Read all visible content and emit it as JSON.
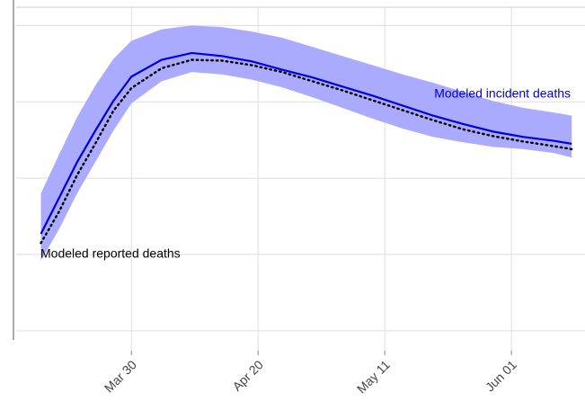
{
  "chart_data": {
    "type": "line",
    "x": [
      15,
      18,
      21,
      24,
      27,
      30,
      35,
      40,
      45,
      50,
      55,
      60,
      65,
      70,
      75,
      80,
      85,
      90,
      95,
      100,
      103
    ],
    "xlim": [
      10.9,
      105.2
    ],
    "xticks": [
      {
        "value": 30,
        "label": "Mar 30"
      },
      {
        "value": 51,
        "label": "Apr 20"
      },
      {
        "value": 72,
        "label": "May 11"
      },
      {
        "value": 93,
        "label": "Jun 01"
      }
    ],
    "ylim": [
      -0.26,
      4.24
    ],
    "yticks": [
      0,
      1,
      2,
      3,
      4
    ],
    "grid": true,
    "band": {
      "color": "#aaaaff",
      "upper": [
        1.8,
        2.31,
        2.8,
        3.21,
        3.56,
        3.8,
        3.95,
        4.0,
        3.98,
        3.92,
        3.84,
        3.72,
        3.6,
        3.48,
        3.36,
        3.25,
        3.13,
        3.01,
        2.92,
        2.86,
        2.82
      ],
      "lower": [
        0.92,
        1.33,
        1.8,
        2.21,
        2.62,
        2.98,
        3.27,
        3.39,
        3.36,
        3.29,
        3.19,
        3.06,
        2.92,
        2.78,
        2.65,
        2.54,
        2.47,
        2.41,
        2.38,
        2.33,
        2.27
      ]
    },
    "series": [
      {
        "name": "Modeled incident deaths",
        "color": "#0000dd",
        "dash": "solid",
        "values": [
          1.27,
          1.74,
          2.21,
          2.62,
          3.01,
          3.33,
          3.55,
          3.64,
          3.6,
          3.53,
          3.42,
          3.32,
          3.2,
          3.08,
          2.95,
          2.82,
          2.71,
          2.61,
          2.54,
          2.49,
          2.45
        ]
      },
      {
        "name": "Modeled reported deaths",
        "color": "#000000",
        "dash": "dotted",
        "values": [
          1.15,
          1.56,
          2.04,
          2.45,
          2.88,
          3.18,
          3.44,
          3.55,
          3.54,
          3.48,
          3.39,
          3.27,
          3.15,
          3.02,
          2.89,
          2.76,
          2.64,
          2.55,
          2.48,
          2.42,
          2.38
        ]
      }
    ]
  }
}
